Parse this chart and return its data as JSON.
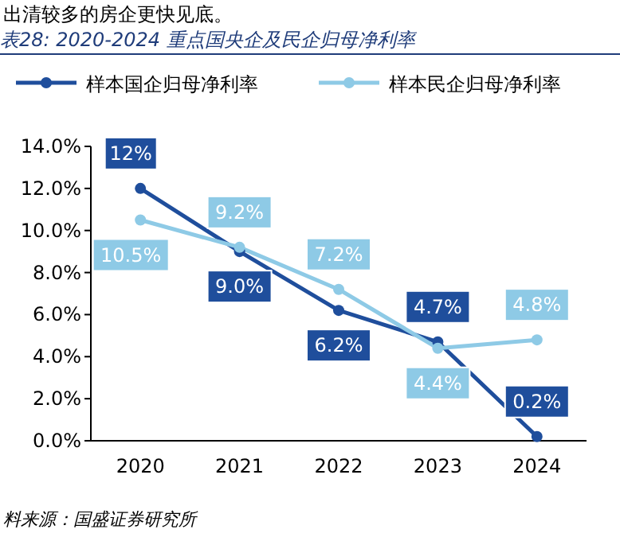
{
  "chart_data": {
    "type": "line",
    "title": "表28: 2020-2024 重点国央企及民企归母净利率",
    "categories": [
      "2020",
      "2021",
      "2022",
      "2023",
      "2024"
    ],
    "series": [
      {
        "name": "样本国企归母净利率",
        "color": "#1f4e9c",
        "values": [
          12,
          9.0,
          6.2,
          4.7,
          0.2
        ],
        "value_labels": [
          "12%",
          "9.0%",
          "6.2%",
          "4.7%",
          "0.2%"
        ]
      },
      {
        "name": "样本民企归母净利率",
        "color": "#8ecae6",
        "values": [
          10.5,
          9.2,
          7.2,
          4.4,
          4.8
        ],
        "value_labels": [
          "10.5%",
          "9.2%",
          "7.2%",
          "4.4%",
          "4.8%"
        ]
      }
    ],
    "ylim": [
      0,
      14
    ],
    "yticks": [
      {
        "value": 0,
        "label": "0.0%"
      },
      {
        "value": 2,
        "label": "2.0%"
      },
      {
        "value": 4,
        "label": "4.0%"
      },
      {
        "value": 6,
        "label": "6.0%"
      },
      {
        "value": 8,
        "label": "8.0%"
      },
      {
        "value": 10,
        "label": "10.0%"
      },
      {
        "value": 12,
        "label": "12.0%"
      },
      {
        "value": 14,
        "label": "14.0%"
      }
    ],
    "grid": false,
    "legend": "top",
    "marker": "circle",
    "line_style": "solid",
    "annotations": [
      "出清较多的房企更快见底。",
      "料来源：国盛证券研究所"
    ]
  }
}
